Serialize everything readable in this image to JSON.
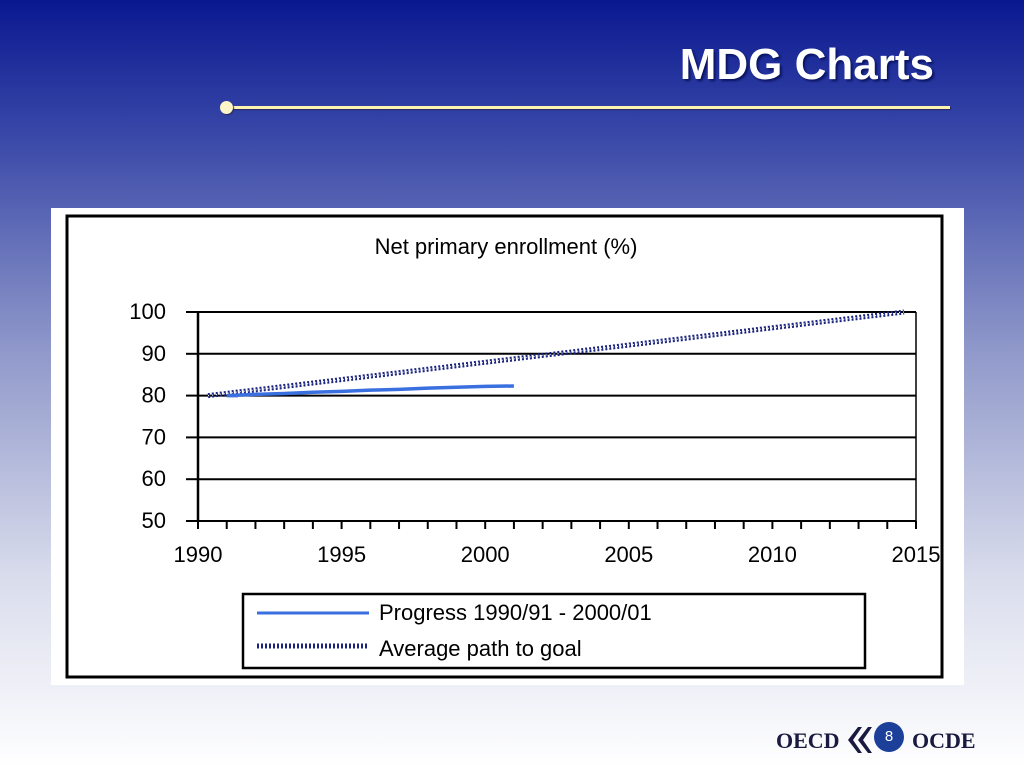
{
  "slide": {
    "title": "MDG Charts",
    "page_number": "8"
  },
  "footer": {
    "logo_left": "OECD",
    "logo_right": "OCDE"
  },
  "colors": {
    "progress_line": "#3a6fe0",
    "goal_line": "#1a237e",
    "title_rule": "#fff3b0"
  },
  "chart_data": {
    "type": "line",
    "title": "Net primary enrollment (%)",
    "xlabel": "",
    "ylabel": "",
    "xlim": [
      1990,
      2015
    ],
    "ylim": [
      50,
      100
    ],
    "x_ticks": [
      "1990",
      "1995",
      "2000",
      "2005",
      "2010",
      "2015"
    ],
    "y_ticks": [
      "100",
      "90",
      "80",
      "70",
      "60",
      "50"
    ],
    "grid": "horizontal",
    "legend_position": "bottom",
    "series": [
      {
        "name": "Progress 1990/91 - 2000/01",
        "style": "solid",
        "x": [
          1990,
          1991,
          1992,
          1993,
          1994,
          1995,
          1996,
          1997,
          1998,
          1999,
          2000,
          2001
        ],
        "y": [
          80.0,
          80.0,
          80.3,
          80.5,
          80.8,
          81.0,
          81.3,
          81.5,
          81.8,
          82.0,
          82.2,
          82.3
        ]
      },
      {
        "name": "Average path to goal",
        "style": "dotted-band",
        "x": [
          1990,
          2015
        ],
        "y": [
          80,
          100
        ]
      }
    ]
  }
}
